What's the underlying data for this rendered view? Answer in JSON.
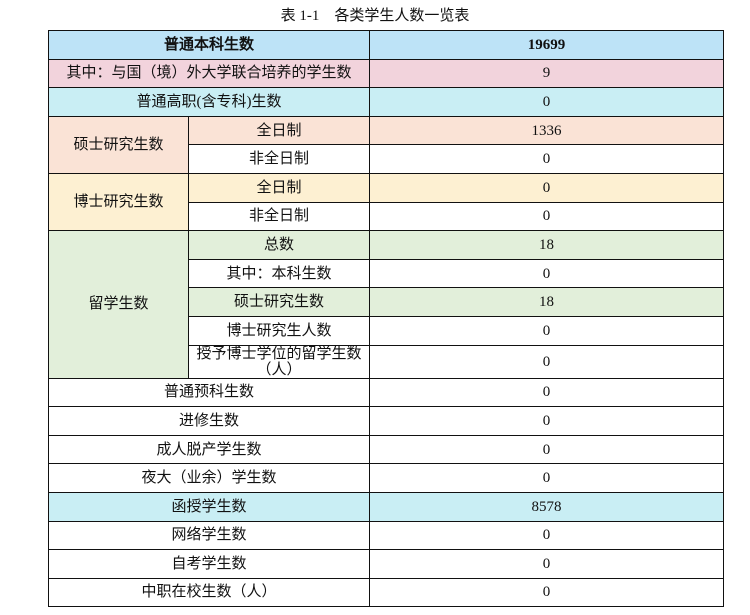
{
  "caption": "表 1-1　各类学生人数一览表",
  "colors": {
    "blue": "#bde3f7",
    "pink": "#f2d3dc",
    "cyan": "#c9eef4",
    "peach": "#fae3d6",
    "yellow": "#fdf0d2",
    "green": "#e2efda"
  },
  "rows": {
    "undergrad": {
      "label": "普通本科生数",
      "value": "19699"
    },
    "joint": {
      "label": "其中：与国（境）外大学联合培养的学生数",
      "value": "9"
    },
    "vocational": {
      "label": "普通高职(含专科)生数",
      "value": "0"
    },
    "master": {
      "group": "硕士研究生数",
      "full_label": "全日制",
      "full_value": "1336",
      "part_label": "非全日制",
      "part_value": "0"
    },
    "doctor": {
      "group": "博士研究生数",
      "full_label": "全日制",
      "full_value": "0",
      "part_label": "非全日制",
      "part_value": "0"
    },
    "intl": {
      "group": "留学生数",
      "items": [
        {
          "label": "总数",
          "value": "18"
        },
        {
          "label": "其中：本科生数",
          "value": "0"
        },
        {
          "label": "硕士研究生数",
          "value": "18"
        },
        {
          "label": "博士研究生人数",
          "value": "0"
        },
        {
          "label": "授予博士学位的留学生数（人）",
          "value": "0"
        }
      ]
    },
    "others": [
      {
        "label": "普通预科生数",
        "value": "0"
      },
      {
        "label": "进修生数",
        "value": "0"
      },
      {
        "label": "成人脱产学生数",
        "value": "0"
      },
      {
        "label": "夜大（业余）学生数",
        "value": "0"
      },
      {
        "label": "函授学生数",
        "value": "8578"
      },
      {
        "label": "网络学生数",
        "value": "0"
      },
      {
        "label": "自考学生数",
        "value": "0"
      },
      {
        "label": "中职在校生数（人）",
        "value": "0"
      }
    ]
  }
}
